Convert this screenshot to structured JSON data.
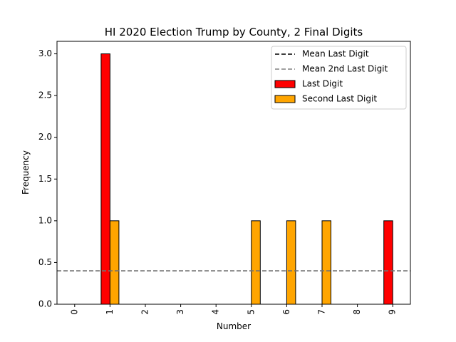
{
  "chart_data": {
    "type": "bar",
    "title": "HI 2020 Election Trump by County, 2 Final Digits",
    "xlabel": "Number",
    "ylabel": "Frequency",
    "categories": [
      "0",
      "1",
      "2",
      "3",
      "4",
      "5",
      "6",
      "7",
      "8",
      "9"
    ],
    "ylim": [
      0,
      3.15
    ],
    "yticks": [
      "0.0",
      "0.5",
      "1.0",
      "1.5",
      "2.0",
      "2.5",
      "3.0"
    ],
    "series": [
      {
        "name": "Last Digit",
        "color": "#ff0000",
        "values": [
          0,
          3,
          0,
          0,
          0,
          0,
          0,
          0,
          0,
          1
        ]
      },
      {
        "name": "Second Last Digit",
        "color": "#ffa500",
        "values": [
          0,
          1,
          0,
          0,
          0,
          1,
          1,
          1,
          0,
          0
        ]
      }
    ],
    "reference_lines": [
      {
        "name": "Mean Last Digit",
        "value": 0.4,
        "color": "#000000",
        "style": "dashed"
      },
      {
        "name": "Mean 2nd Last Digit",
        "value": 0.4,
        "color": "#808080",
        "style": "dashed"
      }
    ],
    "legend_placement": "top-right",
    "grid": false
  }
}
